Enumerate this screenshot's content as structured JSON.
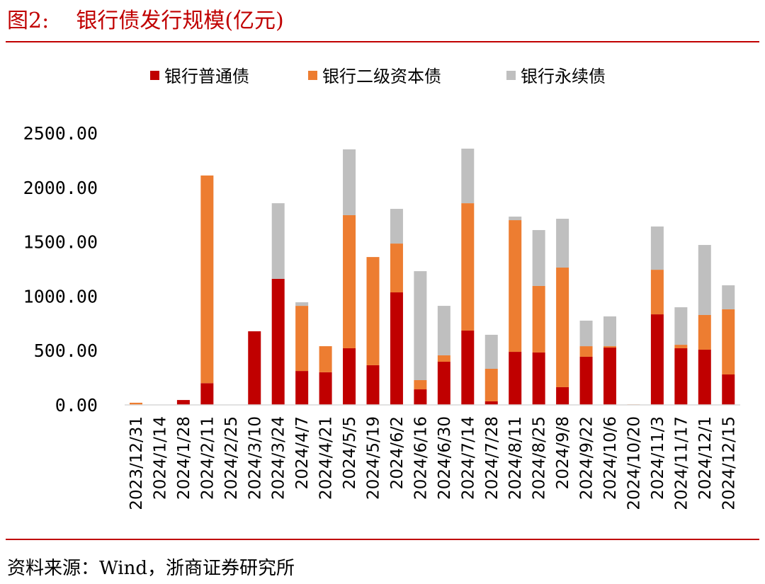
{
  "title": "图2:    银行债发行规模(亿元)",
  "source": "资料来源：Wind，浙商证券研究所",
  "chart_data": {
    "type": "bar",
    "stacked": true,
    "ylim": [
      0,
      2500
    ],
    "yticks": [
      "0.00",
      "500.00",
      "1000.00",
      "1500.00",
      "2000.00",
      "2500.00"
    ],
    "legend_position": "top",
    "grid": false,
    "categories": [
      "2023/12/31",
      "2024/1/14",
      "2024/1/28",
      "2024/2/11",
      "2024/2/25",
      "2024/3/10",
      "2024/3/24",
      "2024/4/7",
      "2024/4/21",
      "2024/5/5",
      "2024/5/19",
      "2024/6/2",
      "2024/6/16",
      "2024/6/30",
      "2024/7/14",
      "2024/7/28",
      "2024/8/11",
      "2024/8/25",
      "2024/9/8",
      "2024/9/22",
      "2024/10/6",
      "2024/10/20",
      "2024/11/3",
      "2024/11/17",
      "2024/12/1",
      "2024/12/15"
    ],
    "series": [
      {
        "name": "银行普通债",
        "color": "#c00000",
        "values": [
          0,
          0,
          45,
          200,
          0,
          677,
          1159,
          312,
          300,
          521,
          365,
          1035,
          143,
          397,
          684,
          33,
          488,
          482,
          163,
          443,
          527,
          0,
          833,
          521,
          508,
          280
        ]
      },
      {
        "name": "银行二级资本债",
        "color": "#ed7d31",
        "values": [
          20,
          0,
          0,
          1910,
          0,
          0,
          0,
          599,
          240,
          1224,
          995,
          449,
          85,
          59,
          1171,
          299,
          1211,
          612,
          1100,
          97,
          13,
          5,
          410,
          32,
          319,
          599
        ]
      },
      {
        "name": "银行永续债",
        "color": "#bfbfbf",
        "values": [
          0,
          0,
          0,
          0,
          0,
          0,
          696,
          33,
          0,
          605,
          0,
          319,
          1002,
          455,
          502,
          313,
          33,
          514,
          449,
          235,
          274,
          0,
          398,
          345,
          644,
          221
        ]
      }
    ]
  }
}
